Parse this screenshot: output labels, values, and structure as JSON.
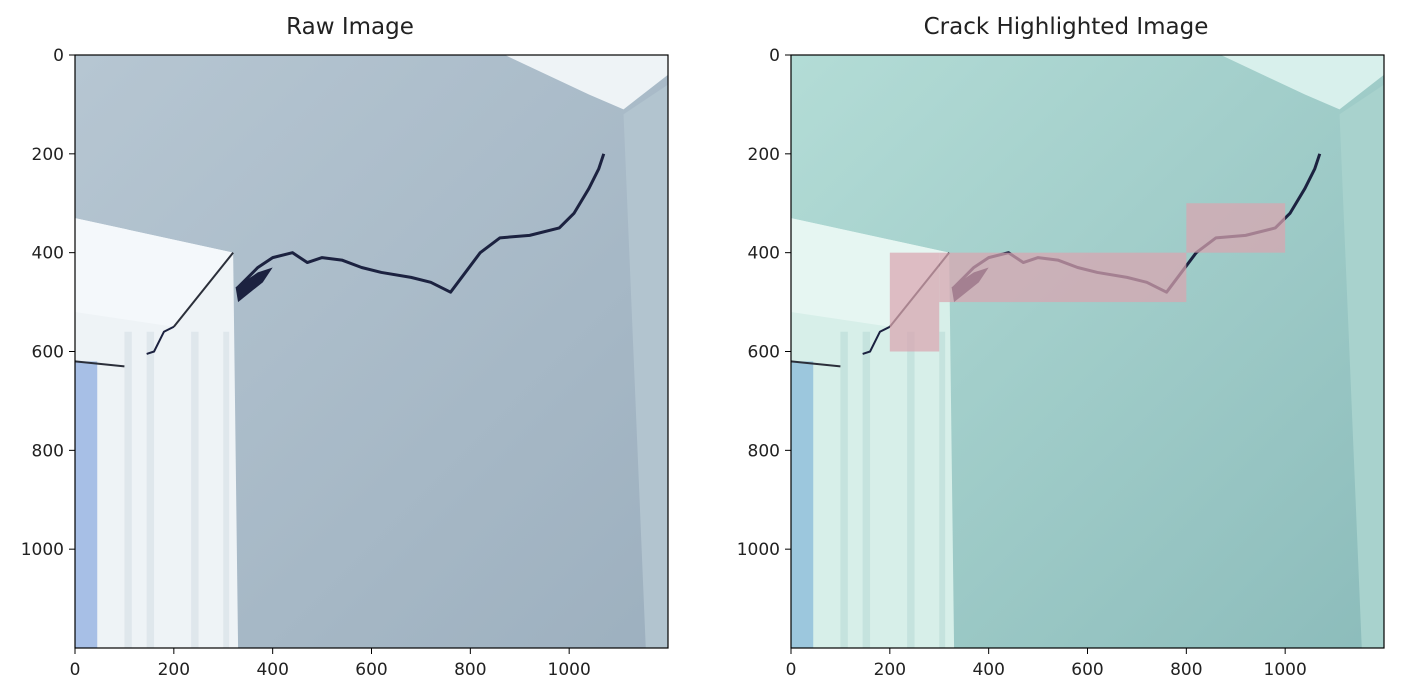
{
  "figure": {
    "panels": [
      {
        "title": "Raw Image"
      },
      {
        "title": "Crack Highlighted Image"
      }
    ]
  },
  "chart_data": [
    {
      "type": "image",
      "title": "Raw Image",
      "x_ticks": [
        0,
        200,
        400,
        600,
        800,
        1000
      ],
      "y_ticks": [
        0,
        200,
        400,
        600,
        800,
        1000
      ],
      "xlim": [
        0,
        1200
      ],
      "ylim": [
        1200,
        0
      ],
      "highlight_boxes": []
    },
    {
      "type": "image",
      "title": "Crack Highlighted Image",
      "x_ticks": [
        0,
        200,
        400,
        600,
        800,
        1000
      ],
      "y_ticks": [
        0,
        200,
        400,
        600,
        800,
        1000
      ],
      "xlim": [
        0,
        1200
      ],
      "ylim": [
        1200,
        0
      ],
      "highlight_color": "#d9a5b0",
      "highlight_boxes": [
        {
          "x0": 200,
          "y0": 400,
          "x1": 300,
          "y1": 600
        },
        {
          "x0": 300,
          "y0": 400,
          "x1": 800,
          "y1": 500
        },
        {
          "x0": 800,
          "y0": 300,
          "x1": 1000,
          "y1": 400
        }
      ]
    }
  ],
  "colors": {
    "wall_raw": "#a6b8c6",
    "wall_tint": "#98c7c4",
    "crack": "#1c2240",
    "trim": "#eef3f6"
  }
}
